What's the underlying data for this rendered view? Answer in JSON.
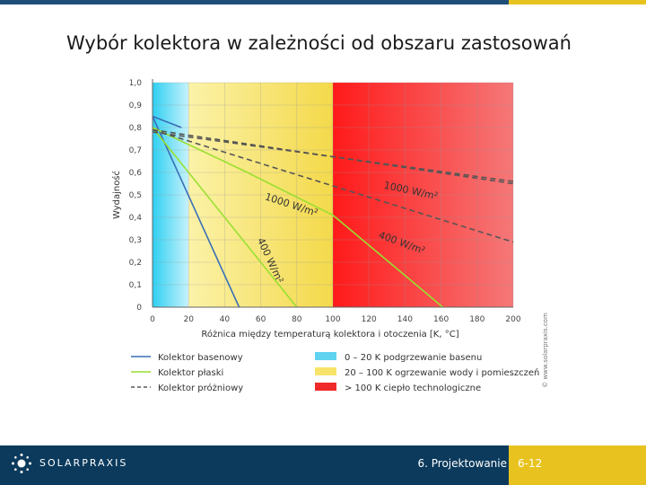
{
  "slide": {
    "title": "Wybór kolektora w zależności od obszaru zastosowań",
    "footer_brand": "SOLARPRAXIS",
    "footer_section": "6. Projektowanie",
    "page_number": "6-12",
    "colors": {
      "footer_bg": "#0b3a5c",
      "accent": "#e8c31f"
    }
  },
  "chart_data": {
    "type": "line",
    "xlabel": "Różnica między temperaturą kolektora i otoczenia [K, °C]",
    "ylabel": "Wydajność",
    "xlim": [
      0,
      200
    ],
    "ylim": [
      0,
      1.0
    ],
    "x_ticks": [
      "0",
      "20",
      "40",
      "60",
      "80",
      "100",
      "120",
      "140",
      "160",
      "180",
      "200"
    ],
    "y_ticks": [
      "0",
      "0,1",
      "0,2",
      "0,3",
      "0,4",
      "0,5",
      "0,6",
      "0,7",
      "0,8",
      "0,9",
      "1,0"
    ],
    "grid": true,
    "copyright": "© www.solarpraxis.com",
    "bands": [
      {
        "from": 0,
        "to": 20,
        "color": "#5fd3f0"
      },
      {
        "from": 20,
        "to": 100,
        "color": "#f7e36a"
      },
      {
        "from": 100,
        "to": 200,
        "color": "#f02a2a"
      }
    ],
    "series": [
      {
        "name": "Kolektor basenowy",
        "style": "solid",
        "color": "#3a6fb7",
        "x": [
          0,
          48
        ],
        "y": [
          0.85,
          0
        ]
      },
      {
        "name": "Kolektor basenowy",
        "style": "solid",
        "color": "#3a6fb7",
        "x": [
          0,
          16
        ],
        "y": [
          0.85,
          0.8
        ]
      },
      {
        "name": "Kolektor płaski",
        "style": "solid",
        "color": "#9adf30",
        "x": [
          0,
          80
        ],
        "y": [
          0.8,
          0
        ]
      },
      {
        "name": "Kolektor płaski",
        "style": "solid",
        "color": "#9adf30",
        "x": [
          0,
          50,
          100,
          161
        ],
        "y": [
          0.8,
          0.61,
          0.41,
          0
        ]
      },
      {
        "name": "Kolektor próżniowy",
        "style": "dashed",
        "color": "#555555",
        "x": [
          0,
          200
        ],
        "y": [
          0.79,
          0.55
        ]
      },
      {
        "name": "Kolektor próżniowy",
        "style": "dashed",
        "color": "#555555",
        "x": [
          0,
          200
        ],
        "y": [
          0.79,
          0.29
        ]
      },
      {
        "name": "Kolektor próżniowy",
        "style": "dashed",
        "color": "#555555",
        "x": [
          0,
          200
        ],
        "y": [
          0.78,
          0.56
        ]
      }
    ],
    "annotations": [
      {
        "text": "1000 W/m²",
        "x": 128,
        "y": 0.53,
        "rotate": 12
      },
      {
        "text": "1000 W/m²",
        "x": 62,
        "y": 0.48,
        "rotate": 18
      },
      {
        "text": "400 W/m²",
        "x": 125,
        "y": 0.31,
        "rotate": 20
      },
      {
        "text": "400 W/m²",
        "x": 58,
        "y": 0.3,
        "rotate": 65
      }
    ],
    "legend": {
      "position": "bottom",
      "series_items": [
        {
          "label": "Kolektor basenowy",
          "color": "#3a6fb7",
          "style": "solid"
        },
        {
          "label": "Kolektor płaski",
          "color": "#9adf30",
          "style": "solid"
        },
        {
          "label": "Kolektor próżniowy",
          "color": "#555555",
          "style": "dashed"
        }
      ],
      "band_items": [
        {
          "label": "0 – 20 K podgrzewanie basenu",
          "color": "#5fd3f0"
        },
        {
          "label": "20 – 100 K ogrzewanie wody i pomieszczeń",
          "color": "#f7e36a"
        },
        {
          "label": "> 100 K ciepło technologiczne",
          "color": "#f02a2a"
        }
      ]
    }
  }
}
